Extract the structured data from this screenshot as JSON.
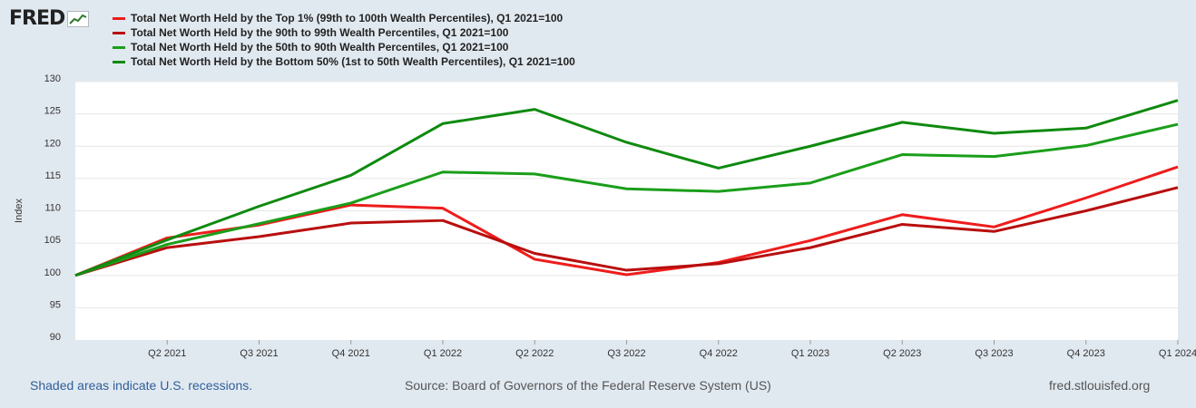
{
  "logo": {
    "text": "FRED",
    "icon": "chart-line-icon"
  },
  "chart_data": {
    "type": "line",
    "title": "",
    "ylabel": "Index",
    "xlabel": "",
    "ylim": [
      90,
      130
    ],
    "yticks": [
      90,
      95,
      100,
      105,
      110,
      115,
      120,
      125,
      130
    ],
    "grid": true,
    "legend_position": "top-left",
    "categories": [
      "Q1 2021",
      "Q2 2021",
      "Q3 2021",
      "Q4 2021",
      "Q1 2022",
      "Q2 2022",
      "Q3 2022",
      "Q4 2022",
      "Q1 2023",
      "Q2 2023",
      "Q3 2023",
      "Q4 2023",
      "Q1 2024"
    ],
    "tick_labels": [
      "Q2 2021",
      "Q3 2021",
      "Q4 2021",
      "Q1 2022",
      "Q2 2022",
      "Q3 2022",
      "Q4 2022",
      "Q1 2023",
      "Q2 2023",
      "Q3 2023",
      "Q4 2023",
      "Q1 2024"
    ],
    "series": [
      {
        "name": "Total Net Worth Held by the Top 1% (99th to 100th Wealth Percentiles), Q1 2021=100",
        "color": "#ee1c1c",
        "values": [
          100,
          105.8,
          107.8,
          110.9,
          110.4,
          102.5,
          100.1,
          102.0,
          105.4,
          109.4,
          107.5,
          112.0,
          116.8
        ]
      },
      {
        "name": "Total Net Worth Held by the 90th to 99th Wealth Percentiles, Q1 2021=100",
        "color": "#b80e0e",
        "values": [
          100,
          104.3,
          106.0,
          108.1,
          108.5,
          103.4,
          100.8,
          101.8,
          104.3,
          107.9,
          106.8,
          110.0,
          113.6
        ]
      },
      {
        "name": "Total Net Worth Held by the 50th to 90th Wealth Percentiles, Q1 2021=100",
        "color": "#1a9e1a",
        "values": [
          100,
          104.8,
          108.0,
          111.2,
          116.0,
          115.7,
          113.4,
          113.0,
          114.3,
          118.7,
          118.4,
          120.1,
          123.4
        ]
      },
      {
        "name": "Total Net Worth Held by the Bottom 50% (1st to 50th Wealth Percentiles), Q1 2021=100",
        "color": "#0f8a0f",
        "values": [
          100,
          105.5,
          110.7,
          115.5,
          123.5,
          125.7,
          120.6,
          116.6,
          120.0,
          123.7,
          122.0,
          122.8,
          127.1
        ]
      }
    ]
  },
  "footer": {
    "recessions": "Shaded areas indicate U.S. recessions.",
    "source": "Source: Board of Governors of the Federal Reserve System (US)",
    "site": "fred.stlouisfed.org"
  }
}
